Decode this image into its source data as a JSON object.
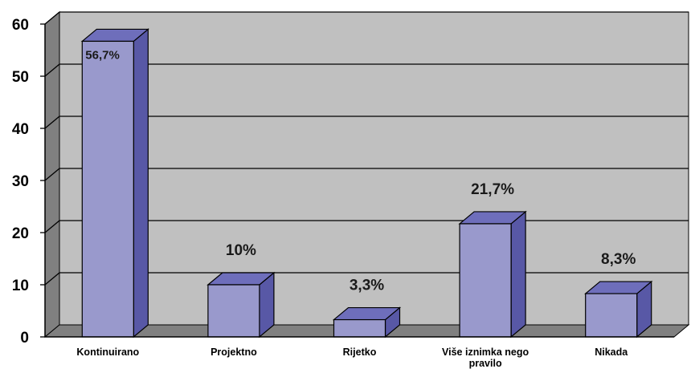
{
  "chart_data": {
    "type": "bar",
    "style": "3d-column",
    "categories": [
      "Kontinuirano",
      "Projektno",
      "Rijetko",
      "Više iznimka nego pravilo",
      "Nikada"
    ],
    "values": [
      56.7,
      10,
      3.3,
      21.7,
      8.3
    ],
    "data_labels": [
      "56,7%",
      "10%",
      "3,3%",
      "21,7%",
      "8,3%"
    ],
    "ylim": [
      0,
      60
    ],
    "yticks": [
      "0",
      "10",
      "20",
      "30",
      "40",
      "50",
      "60"
    ],
    "grid": true,
    "legend": "none",
    "title": "",
    "xlabel": "",
    "ylabel": ""
  },
  "colors": {
    "bar_front": "#9999cc",
    "bar_side": "#5858a6",
    "bar_top": "#6e6ebb",
    "wall_back": "#c0c0c0",
    "wall_side": "#808080",
    "floor": "#808080",
    "gridline": "#000000"
  }
}
